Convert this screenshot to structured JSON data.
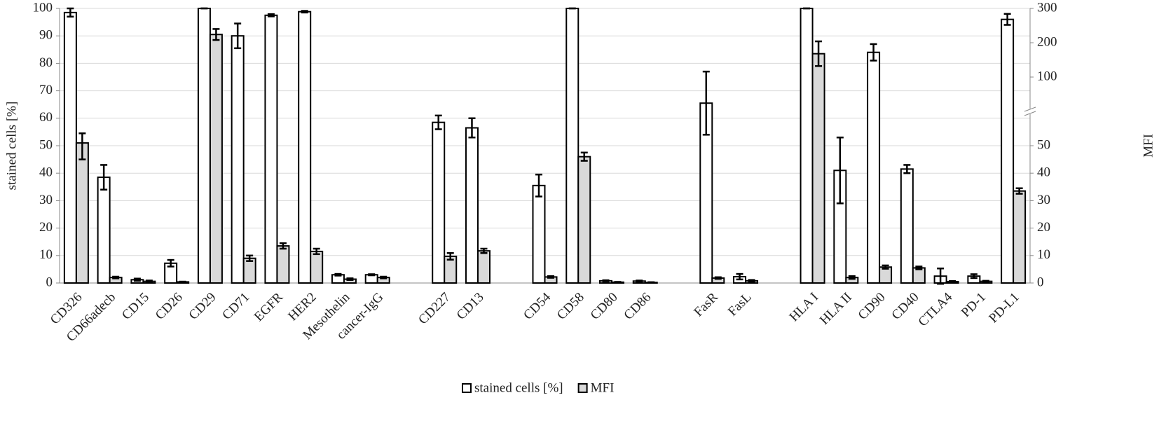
{
  "chart_data": {
    "type": "bar",
    "categories": [
      "CD326",
      "CD66adecb",
      "CD15",
      "CD26",
      "CD29",
      "CD71",
      "EGFR",
      "HER2",
      "Mesothelin",
      "cancer-IgG",
      null,
      "CD227",
      "CD13",
      null,
      "CD54",
      "CD58",
      "CD80",
      "CD86",
      null,
      "FasR",
      "FasL",
      null,
      "HLA I",
      "HLA II",
      "CD90",
      "CD40",
      "CTLA4",
      "PD-1",
      "PD-L1"
    ],
    "series": [
      {
        "name": "stained cells [%]",
        "color": "#ffffff",
        "axis": "y",
        "values": [
          98.5,
          38.5,
          1.2,
          7.2,
          100,
          90,
          97.5,
          98.8,
          3,
          3,
          null,
          58.5,
          56.5,
          null,
          35.5,
          100,
          0.8,
          0.7,
          null,
          65.5,
          2.3,
          null,
          100,
          41,
          84,
          41.5,
          2.5,
          2.5,
          96
        ],
        "errors": [
          1.5,
          4.5,
          0.4,
          1.2,
          0,
          4.5,
          0.4,
          0.3,
          0.3,
          0.2,
          null,
          2.5,
          3.5,
          null,
          4,
          0,
          0.2,
          0.2,
          null,
          11.5,
          1,
          null,
          0,
          12,
          3,
          1.5,
          2.8,
          0.7,
          2
        ]
      },
      {
        "name": "MFI",
        "color": "#d9d9d9",
        "axis": "y2",
        "values": [
          52,
          2,
          0.6,
          0.4,
          224,
          9,
          13.5,
          11.5,
          1.4,
          2,
          null,
          9.7,
          11.7,
          null,
          2.2,
          46,
          0.3,
          0.2,
          null,
          1.8,
          0.8,
          null,
          168,
          2,
          5.8,
          5.5,
          0.5,
          0.6,
          33.5
        ],
        "errors": [
          7,
          0.3,
          0.3,
          0.1,
          16,
          1,
          1,
          1,
          0.3,
          0.3,
          null,
          1.2,
          0.8,
          null,
          0.3,
          1.5,
          0.1,
          0.1,
          null,
          0.3,
          0.3,
          null,
          36,
          0.5,
          0.6,
          0.5,
          0.2,
          0.2,
          1
        ]
      }
    ],
    "ylabel": "stained cells [%]",
    "y2label": "MFI",
    "ylim": [
      0,
      100
    ],
    "yticks": [
      0,
      10,
      20,
      30,
      40,
      50,
      60,
      70,
      80,
      90,
      100
    ],
    "y2lim": [
      0,
      300
    ],
    "y2ticks": [
      0,
      10,
      20,
      30,
      40,
      50,
      100,
      200,
      300
    ],
    "y2_break": [
      50,
      100
    ],
    "grid": true,
    "legend": "bottom"
  }
}
